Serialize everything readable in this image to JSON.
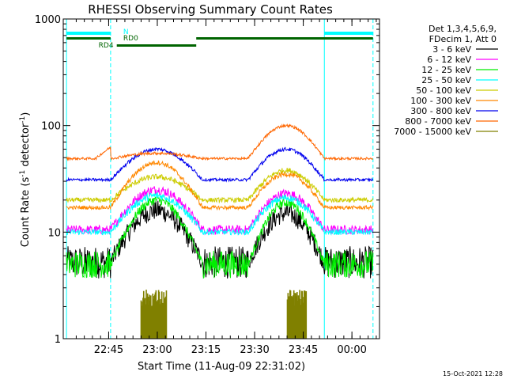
{
  "chart_data": {
    "type": "line",
    "title": "RHESSI Observing Summary Count Rates",
    "xlabel": "Start Time (11-Aug-09 22:31:02)",
    "ylabel_main": "Count Rate (s",
    "ylabel_sup1": "-1",
    "ylabel_mid": " detector",
    "ylabel_sup2": "-1",
    "ylabel_end": ")",
    "yscale": "log",
    "ylim": [
      1,
      1000
    ],
    "y_ticks": [
      {
        "value": 1,
        "label": "1"
      },
      {
        "value": 10,
        "label": "10"
      },
      {
        "value": 100,
        "label": "100"
      },
      {
        "value": 1000,
        "label": "1000"
      }
    ],
    "xlim_minutes": [
      0,
      97.5
    ],
    "x_ticks": [
      {
        "minute": 14,
        "label": "22:45"
      },
      {
        "minute": 29,
        "label": "23:00"
      },
      {
        "minute": 44,
        "label": "23:15"
      },
      {
        "minute": 59,
        "label": "23:30"
      },
      {
        "minute": 74,
        "label": "23:45"
      },
      {
        "minute": 89,
        "label": "00:00"
      }
    ],
    "x_minor_step_minutes": 2.5,
    "legend_header": [
      "Det 1,3,4,5,6,9,",
      "FDecim 1, Att 0"
    ],
    "series": [
      {
        "name": "3 - 6 keV",
        "color": "#000000"
      },
      {
        "name": "6 - 12 keV",
        "color": "#ff00ff"
      },
      {
        "name": "12 - 25 keV",
        "color": "#00ee00"
      },
      {
        "name": "25 - 50 keV",
        "color": "#00ffff"
      },
      {
        "name": "50 - 100 keV",
        "color": "#cccc00"
      },
      {
        "name": "100 - 300 keV",
        "color": "#ff8800"
      },
      {
        "name": "300 - 800 keV",
        "color": "#0000ee"
      },
      {
        "name": "800 - 7000 keV",
        "color": "#ff6600"
      },
      {
        "name": "7000 - 15000 keV",
        "color": "#808000"
      }
    ],
    "flag_labels": {
      "night": "N",
      "rd0": "RD0",
      "rd4": "RD4"
    },
    "flag_colors": {
      "night": "#00ffff",
      "data": "#006400"
    },
    "timestamp": "15-Oct-2021 12:28"
  }
}
